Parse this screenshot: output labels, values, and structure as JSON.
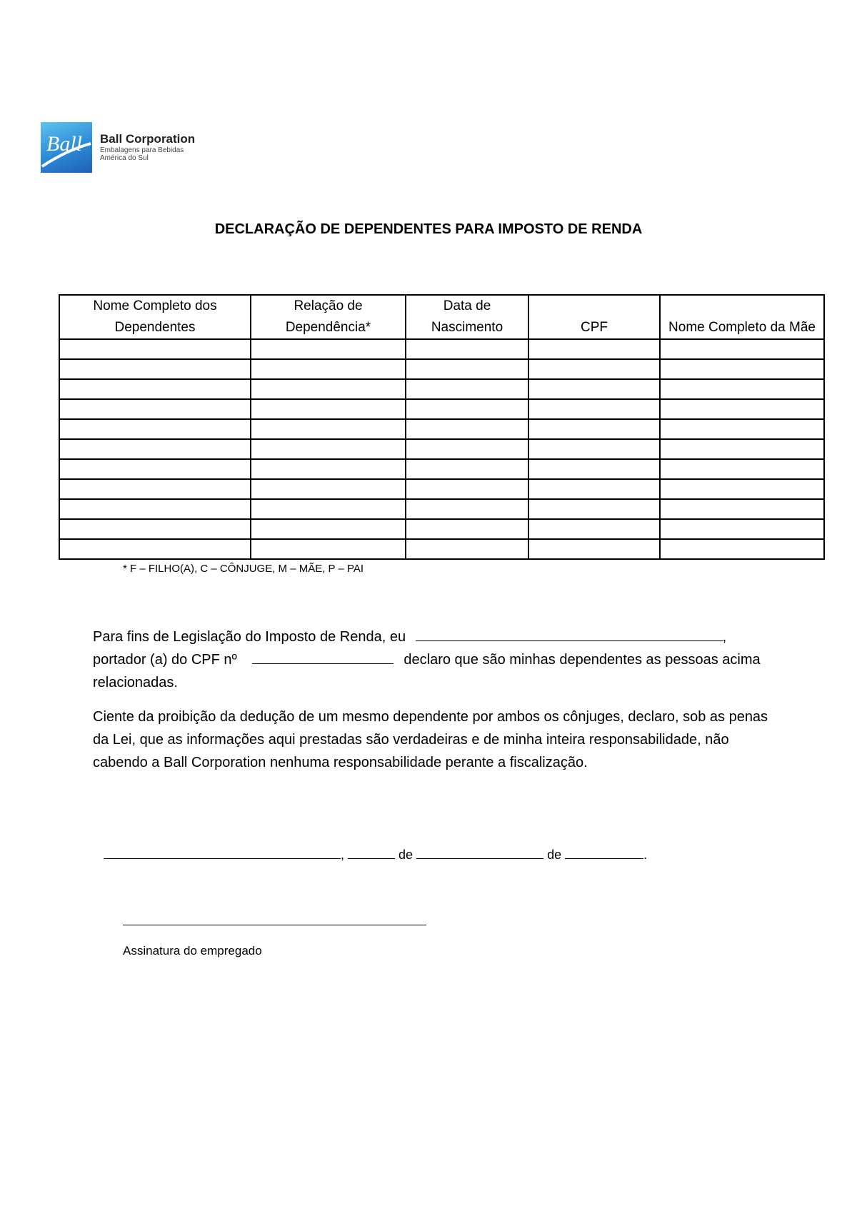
{
  "logo": {
    "mark": "Ball",
    "name": "Ball Corporation",
    "line1": "Embalagens para Bebidas",
    "line2": "América do Sul",
    "color": "#2b8ad6"
  },
  "title": "DECLARAÇÃO DE DEPENDENTES PARA IMPOSTO DE RENDA",
  "table": {
    "headers": [
      "Nome Completo dos Dependentes",
      "Relação de Dependência*",
      "Data de Nascimento",
      "CPF",
      "Nome Completo da Mãe"
    ],
    "empty_rows": 11
  },
  "footnote": "* F – FILHO(A), C – CÔNJUGE, M – MÃE, P – PAI",
  "para1": {
    "a": "Para fins de Legislação do Imposto de Renda, eu",
    "b": ",",
    "c": "portador (a) do CPF nº",
    "d": "declaro que são minhas dependentes as pessoas acima relacionadas."
  },
  "para2": "Ciente da proibição da dedução de um mesmo dependente por ambos os cônjuges, declaro, sob as penas da Lei, que as informações aqui prestadas são verdadeiras e de minha inteira responsabilidade, não cabendo a Ball Corporation nenhuma responsabilidade perante a fiscalização.",
  "date_line": {
    "comma": ",",
    "de1": "de",
    "de2": "de",
    "end": "."
  },
  "signature_label": "Assinatura do empregado"
}
